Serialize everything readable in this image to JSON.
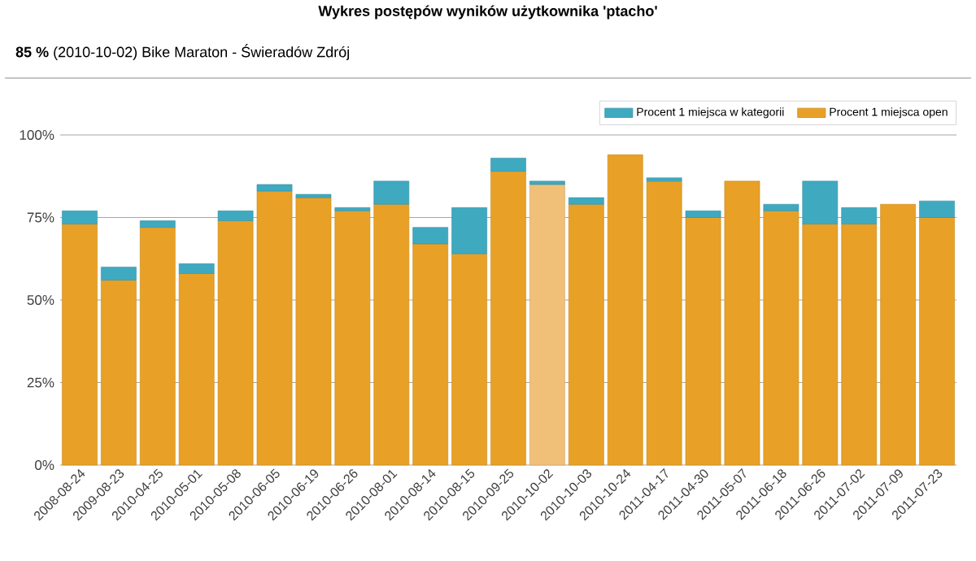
{
  "chart_data": {
    "type": "bar",
    "title": "Wykres postępów wyników użytkownika 'ptacho'",
    "subtitle": "**85 %** (2010-10-02) Bike Maraton - Świeradów Zdrój",
    "categories": [
      "2008-08-24",
      "2009-08-23",
      "2010-04-25",
      "2010-05-01",
      "2010-05-08",
      "2010-06-05",
      "2010-06-19",
      "2010-06-26",
      "2010-08-01",
      "2010-08-14",
      "2010-08-15",
      "2010-09-25",
      "2010-10-02",
      "2010-10-03",
      "2010-10-24",
      "2011-04-17",
      "2011-04-30",
      "2011-05-07",
      "2011-06-18",
      "2011-06-26",
      "2011-07-02",
      "2011-07-09",
      "2011-07-23"
    ],
    "stacked": true,
    "series": [
      {
        "name": "Procent 1 miejsca open",
        "color": "#e8a126",
        "colors": [
          "#e8a126",
          "#e8a126",
          "#e8a126",
          "#e8a126",
          "#e8a126",
          "#e8a126",
          "#e8a126",
          "#e8a126",
          "#e8a126",
          "#e8a126",
          "#e8a126",
          "#e8a126",
          "#f0c078",
          "#e8a126",
          "#e8a126",
          "#e8a126",
          "#e8a126",
          "#e8a126",
          "#e8a126",
          "#e8a126",
          "#e8a126",
          "#e8a126",
          "#e8a126"
        ],
        "values": [
          73,
          56,
          72,
          58,
          74,
          83,
          81,
          77,
          79,
          67,
          64,
          89,
          85,
          79,
          94,
          86,
          75,
          86,
          77,
          73,
          73,
          79,
          75
        ]
      },
      {
        "name": "Procent 1 miejsca w kategorii",
        "color": "#3fa9c0",
        "values": [
          4,
          4,
          2,
          3,
          3,
          2,
          1,
          1,
          7,
          5,
          14,
          4,
          1,
          2,
          0,
          1,
          2,
          0,
          2,
          13,
          5,
          0,
          5
        ]
      }
    ],
    "ylim": [
      0,
      100
    ],
    "yticks": [
      {
        "value": 0,
        "label": "0%"
      },
      {
        "value": 25,
        "label": "25%"
      },
      {
        "value": 50,
        "label": "50%"
      },
      {
        "value": 75,
        "label": "75%"
      },
      {
        "value": 100,
        "label": "100%"
      }
    ],
    "grid": "y",
    "legend": "top right"
  }
}
